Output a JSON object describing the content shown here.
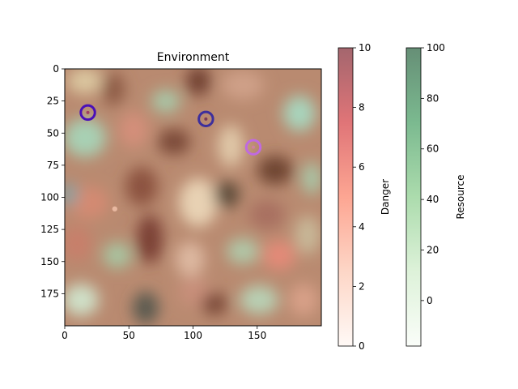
{
  "chart_data": [
    {
      "type": "heatmap",
      "title": "Environment",
      "xlabel": "",
      "ylabel": "",
      "xlim": [
        0,
        200
      ],
      "ylim": [
        200,
        0
      ],
      "x_ticks": [
        0,
        50,
        100,
        150
      ],
      "y_ticks": [
        0,
        25,
        50,
        75,
        100,
        125,
        150,
        175
      ],
      "layers": [
        "Resource",
        "Danger"
      ],
      "markers": [
        {
          "x": 18,
          "y": 34,
          "radius": 5.5,
          "color": "#4a10b8",
          "center_color": "#a04060"
        },
        {
          "x": 110,
          "y": 39,
          "radius": 5.5,
          "color": "#3d2f9c",
          "center_color": "#7a3a5a"
        },
        {
          "x": 147,
          "y": 61,
          "radius": 5.5,
          "color": "#c06ae0",
          "center_color": "#d080a0"
        },
        {
          "x": 39,
          "y": 109,
          "radius": 2,
          "color": "#f0c0a8",
          "center_color": "#f0c0a8"
        }
      ]
    },
    {
      "type": "colorbar",
      "label": "Danger",
      "range": [
        0,
        10
      ],
      "ticks": [
        0,
        2,
        4,
        6,
        8,
        10
      ],
      "colormap": "Reds",
      "colors": [
        "#fff5f0",
        "#fcbba1",
        "#fb6a4a",
        "#cb181d",
        "#67000d"
      ]
    },
    {
      "type": "colorbar",
      "label": "Resource",
      "range": [
        -18,
        100
      ],
      "ticks": [
        0,
        20,
        40,
        60,
        80,
        100
      ],
      "colormap": "Greens",
      "colors": [
        "#f7fcf5",
        "#c7e9c0",
        "#74c476",
        "#238b45",
        "#00441b"
      ]
    }
  ]
}
